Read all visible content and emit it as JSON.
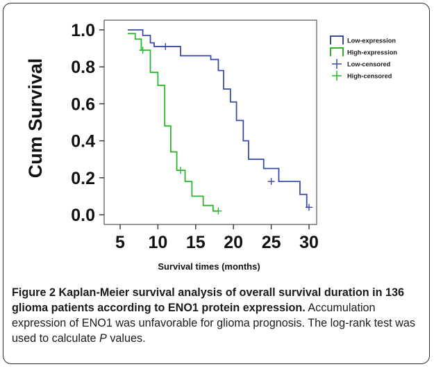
{
  "chart_data": {
    "type": "line",
    "subtype": "kaplan-meier step survival curve",
    "xlabel": "Survival times (months)",
    "ylabel": "Cum Survival",
    "xlim": [
      5,
      30
    ],
    "ylim": [
      0.0,
      1.0
    ],
    "x_ticks": [
      "5",
      "10",
      "15",
      "20",
      "25",
      "30"
    ],
    "y_ticks": [
      "0.0",
      "0.2",
      "0.4",
      "0.6",
      "0.8",
      "1.0"
    ],
    "x_tick_values": [
      5,
      10,
      15,
      20,
      25,
      30
    ],
    "y_tick_values": [
      0.0,
      0.2,
      0.4,
      0.6,
      0.8,
      1.0
    ],
    "grid": false,
    "legend_position": "top-right",
    "legend": [
      {
        "label": "Low-expression",
        "kind": "step-line",
        "color": "#3a4aa6"
      },
      {
        "label": "High-expression",
        "kind": "step-line",
        "color": "#2bb52b"
      },
      {
        "label": "Low-censored",
        "kind": "cross",
        "color": "#3a4aa6"
      },
      {
        "label": "High-censored",
        "kind": "cross",
        "color": "#2bb52b"
      }
    ],
    "series": [
      {
        "name": "Low-expression",
        "color": "#3a4aa6",
        "steps": [
          [
            6,
            1.0
          ],
          [
            8,
            0.97
          ],
          [
            9,
            0.93
          ],
          [
            9.5,
            0.91
          ],
          [
            13,
            0.86
          ],
          [
            17,
            0.84
          ],
          [
            18,
            0.78
          ],
          [
            18.7,
            0.68
          ],
          [
            19.6,
            0.61
          ],
          [
            20.4,
            0.51
          ],
          [
            21.3,
            0.4
          ],
          [
            22,
            0.3
          ],
          [
            24,
            0.25
          ],
          [
            26,
            0.18
          ],
          [
            28.8,
            0.11
          ],
          [
            29.7,
            0.04
          ],
          [
            30,
            0.04
          ]
        ]
      },
      {
        "name": "High-expression",
        "color": "#2bb52b",
        "steps": [
          [
            6,
            0.98
          ],
          [
            7,
            0.95
          ],
          [
            7.8,
            0.89
          ],
          [
            9,
            0.77
          ],
          [
            10,
            0.7
          ],
          [
            10.9,
            0.48
          ],
          [
            11.7,
            0.34
          ],
          [
            12.5,
            0.24
          ],
          [
            13.6,
            0.18
          ],
          [
            14.5,
            0.1
          ],
          [
            16,
            0.05
          ],
          [
            17.3,
            0.02
          ],
          [
            18,
            0.02
          ]
        ]
      }
    ],
    "censored": [
      {
        "series": "Low-expression",
        "points": [
          [
            11,
            0.91
          ],
          [
            25,
            0.18
          ],
          [
            30,
            0.04
          ]
        ]
      },
      {
        "series": "High-expression",
        "points": [
          [
            8,
            0.89
          ],
          [
            13,
            0.24
          ],
          [
            18,
            0.02
          ]
        ]
      }
    ]
  },
  "caption": {
    "figure_label": "Figure 2",
    "bold_text": "Kaplan-Meier survival analysis of overall survival duration in 136 glioma patients according to ENO1 protein expression.",
    "body_text_1": "Accumulation expression of ENO1 was unfavorable for glioma prognosis. The log-rank test was used to calculate",
    "p_symbol": "P",
    "body_text_2": "values."
  }
}
